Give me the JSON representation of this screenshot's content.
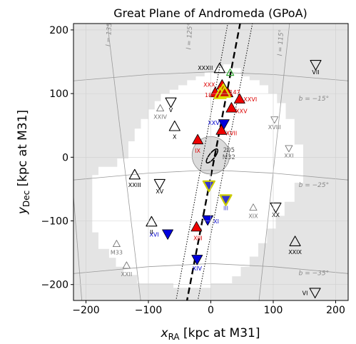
{
  "chart_data": {
    "type": "scatter",
    "title": "Great Plane of Andromeda (GPoA)",
    "xlabel": "x_RA [kpc at M31]",
    "ylabel": "y_Dec [kpc at M31]",
    "xlim": [
      -220,
      220
    ],
    "ylim": [
      -225,
      210
    ],
    "x_ticks": [
      -200,
      -100,
      0,
      100,
      200
    ],
    "x_tick_labels": [
      "−200",
      "−100",
      "0",
      "100",
      "200"
    ],
    "y_ticks": [
      -200,
      -100,
      0,
      100,
      200
    ],
    "y_tick_labels": [
      "−200",
      "−100",
      "0",
      "100",
      "200"
    ],
    "grid": true,
    "survey_footprint": [
      [
        -80,
        100
      ],
      [
        -66,
        100
      ],
      [
        -66,
        106
      ],
      [
        -52,
        106
      ],
      [
        -52,
        113
      ],
      [
        -38,
        113
      ],
      [
        -38,
        121
      ],
      [
        -24,
        121
      ],
      [
        -24,
        127
      ],
      [
        -10,
        127
      ],
      [
        -10,
        134
      ],
      [
        5,
        134
      ],
      [
        5,
        140
      ],
      [
        20,
        140
      ],
      [
        20,
        146
      ],
      [
        34,
        146
      ],
      [
        34,
        140
      ],
      [
        48,
        140
      ],
      [
        48,
        127
      ],
      [
        62,
        127
      ],
      [
        62,
        121
      ],
      [
        78,
        121
      ],
      [
        78,
        113
      ],
      [
        92,
        113
      ],
      [
        92,
        100
      ],
      [
        106,
        100
      ],
      [
        106,
        85
      ],
      [
        120,
        85
      ],
      [
        120,
        60
      ],
      [
        134,
        60
      ],
      [
        134,
        20
      ],
      [
        148,
        20
      ],
      [
        148,
        -40
      ],
      [
        134,
        -40
      ],
      [
        134,
        -70
      ],
      [
        118,
        -70
      ],
      [
        118,
        -92
      ],
      [
        104,
        -92
      ],
      [
        104,
        -112
      ],
      [
        90,
        -112
      ],
      [
        90,
        -135
      ],
      [
        76,
        -135
      ],
      [
        76,
        -156
      ],
      [
        62,
        -156
      ],
      [
        62,
        -172
      ],
      [
        48,
        -172
      ],
      [
        48,
        -187
      ],
      [
        34,
        -187
      ],
      [
        34,
        -198
      ],
      [
        0,
        -198
      ],
      [
        0,
        -205
      ],
      [
        -60,
        -205
      ],
      [
        -60,
        -198
      ],
      [
        -118,
        -198
      ],
      [
        -118,
        -185
      ],
      [
        -140,
        -185
      ],
      [
        -140,
        -172
      ],
      [
        -152,
        -172
      ],
      [
        -152,
        -158
      ],
      [
        -163,
        -158
      ],
      [
        -163,
        -144
      ],
      [
        -180,
        -144
      ],
      [
        -180,
        -118
      ],
      [
        -190,
        -118
      ],
      [
        -190,
        -28
      ],
      [
        -180,
        -28
      ],
      [
        -180,
        -15
      ],
      [
        -150,
        -15
      ],
      [
        -150,
        -2
      ],
      [
        -132,
        -2
      ],
      [
        -132,
        25
      ],
      [
        -122,
        25
      ],
      [
        -122,
        45
      ],
      [
        -112,
        45
      ],
      [
        -112,
        60
      ],
      [
        -100,
        60
      ],
      [
        -100,
        75
      ],
      [
        -90,
        75
      ],
      [
        -90,
        88
      ],
      [
        -80,
        88
      ]
    ],
    "gal_lon_lines": [
      {
        "label": "l = 135°",
        "pts": [
          [
            -245,
            245
          ],
          [
            -205,
            -245
          ]
        ]
      },
      {
        "label": "l = 125°",
        "pts": [
          [
            -170,
            245
          ],
          [
            -110,
            -245
          ]
        ]
      },
      {
        "label": "l = 115°",
        "pts": [
          [
            130,
            245
          ],
          [
            75,
            -245
          ]
        ]
      }
    ],
    "gal_lat_lines": [
      {
        "label": "b = −15°",
        "pts": [
          [
            -245,
            118
          ],
          [
            -100,
            130
          ],
          [
            0,
            134
          ],
          [
            100,
            130
          ],
          [
            245,
            118
          ]
        ]
      },
      {
        "label": "b = −25°",
        "pts": [
          [
            -245,
            -38
          ],
          [
            -100,
            -25
          ],
          [
            0,
            -20
          ],
          [
            100,
            -25
          ],
          [
            245,
            -38
          ]
        ]
      },
      {
        "label": "b = −35°",
        "pts": [
          [
            -245,
            -185
          ],
          [
            -100,
            -172
          ],
          [
            0,
            -167
          ],
          [
            100,
            -172
          ],
          [
            245,
            -185
          ]
        ]
      }
    ],
    "gal_lon_label_pos": [
      [
        -160,
        195
      ],
      [
        -31,
        190
      ],
      [
        115,
        180
      ]
    ],
    "gal_lat_label_pos": [
      [
        165,
        89
      ],
      [
        165,
        -47
      ],
      [
        165,
        -185
      ]
    ],
    "plane_line": {
      "x": [
        -39.1,
        47.9
      ],
      "y": [
        -230,
        215
      ]
    },
    "plane_band": [
      {
        "x": [
          -56.7,
          28.1
        ],
        "y": [
          -230,
          215
        ]
      },
      {
        "x": [
          -21.8,
          67.7
        ],
        "y": [
          -230,
          215
        ]
      }
    ],
    "m31_region": {
      "x": 0,
      "y": 3,
      "radius": 30
    },
    "m31_ellipse": {
      "x": 2,
      "y": 2,
      "rx": 12,
      "ry": 4,
      "angle": -52
    },
    "series": [
      {
        "name": "",
        "marker": "triangle-up-filled",
        "color": "#ee0000",
        "points": [
          {
            "x": 18,
            "y": 112,
            "label": "XXX",
            "lx": -18,
            "ly": 2
          },
          {
            "x": 7,
            "y": 100,
            "label": "185",
            "lx": -7,
            "ly": -2
          },
          {
            "x": 27,
            "y": 100,
            "label": "147",
            "lx": 10,
            "ly": 2
          },
          {
            "x": 46,
            "y": 90,
            "label": "XXVI",
            "lx": 15,
            "ly": 1
          },
          {
            "x": 33,
            "y": 76,
            "label": "XXV",
            "lx": 14,
            "ly": -3
          },
          {
            "x": 17,
            "y": 41,
            "label": "XVII",
            "lx": 14,
            "ly": -3
          },
          {
            "x": -21,
            "y": 26,
            "label": "IX",
            "lx": 0,
            "ly": -14
          },
          {
            "x": -23,
            "y": -111,
            "label": "XIII",
            "lx": 2,
            "ly": -14
          }
        ]
      },
      {
        "name": "",
        "marker": "triangle-down-filled",
        "color": "#0000dd",
        "points": [
          {
            "x": 21,
            "y": 54,
            "label": "XXVII",
            "lx": -12,
            "ly": 0
          },
          {
            "x": -5,
            "y": -97,
            "label": "XI",
            "lx": 12,
            "ly": -3
          },
          {
            "x": -69,
            "y": -119,
            "label": "XVI",
            "lx": -19,
            "ly": -2
          },
          {
            "x": -22,
            "y": -159,
            "label": "XIV",
            "lx": 0,
            "ly": -14
          }
        ]
      },
      {
        "name": "",
        "marker": "triangle-up-outline",
        "color": "#000000",
        "points": [
          {
            "x": 14,
            "y": 138,
            "label": "XXXII",
            "lx": -20,
            "ly": 2
          },
          {
            "x": -58,
            "y": 47,
            "label": "X",
            "lx": 0,
            "ly": -13
          },
          {
            "x": -95,
            "y": -103,
            "label": "II",
            "lx": 0,
            "ly": -13
          },
          {
            "x": 135,
            "y": -134,
            "label": "XXIX",
            "lx": 0,
            "ly": -13
          },
          {
            "x": -122,
            "y": -29,
            "label": "XXIII",
            "lx": 0,
            "ly": -13
          }
        ]
      },
      {
        "name": "",
        "marker": "triangle-down-outline",
        "color": "#000000",
        "points": [
          {
            "x": -64,
            "y": 88,
            "label": "V",
            "lx": 0,
            "ly": -12
          },
          {
            "x": 168,
            "y": 147,
            "label": "VII",
            "lx": 0,
            "ly": -12
          },
          {
            "x": -82,
            "y": -40,
            "label": "XV",
            "lx": 0,
            "ly": -12
          },
          {
            "x": 104,
            "y": -77,
            "label": "XX",
            "lx": 0,
            "ly": -12
          },
          {
            "x": 167,
            "y": -211,
            "label": "VI",
            "lx": -14,
            "ly": -2
          }
        ]
      },
      {
        "name": "",
        "marker": "triangle-up-outline-small",
        "color": "#777777",
        "points": [
          {
            "x": -81,
            "y": 76,
            "label": "XXIV",
            "lx": 0,
            "ly": -11
          },
          {
            "x": 68,
            "y": -80,
            "label": "XIX",
            "lx": 0,
            "ly": -11
          },
          {
            "x": -151,
            "y": -137,
            "label": "M33",
            "lx": 0,
            "ly": -11
          },
          {
            "x": -135,
            "y": -171,
            "label": "XXII",
            "lx": 0,
            "ly": -11
          }
        ]
      },
      {
        "name": "",
        "marker": "triangle-down-outline-small",
        "color": "#777777",
        "points": [
          {
            "x": 102,
            "y": 60,
            "label": "XVIII",
            "lx": 0,
            "ly": -11
          },
          {
            "x": 125,
            "y": 15,
            "label": "XXI",
            "lx": 0,
            "ly": -11
          }
        ]
      },
      {
        "name": "",
        "marker": "triangle-down-yellow-blue",
        "color": "#3333cc",
        "points": [
          {
            "x": -3,
            "y": -43,
            "label": "",
            "lx": 0,
            "ly": 0
          },
          {
            "x": 24,
            "y": -65,
            "label": "III",
            "lx": 0,
            "ly": -13
          }
        ]
      },
      {
        "name": "",
        "marker": "triangle-up-yellow",
        "color": "#cc0000",
        "points": [
          {
            "x": 20,
            "y": 104,
            "label": "",
            "lx": 0,
            "ly": 0
          },
          {
            "x": 15,
            "y": 98,
            "label": "",
            "lx": 0,
            "ly": 0
          },
          {
            "x": 22,
            "y": 100,
            "label": "",
            "lx": 0,
            "ly": 0
          }
        ]
      },
      {
        "name": "",
        "marker": "triangle-up-green",
        "color": "#44bb44",
        "points": [
          {
            "x": 31,
            "y": 132,
            "label": "",
            "lx": 0,
            "ly": 0
          }
        ]
      }
    ],
    "annotations": [
      {
        "text": "205",
        "x": 29,
        "y": 8
      },
      {
        "text": "M32",
        "x": 29,
        "y": -3
      }
    ]
  }
}
